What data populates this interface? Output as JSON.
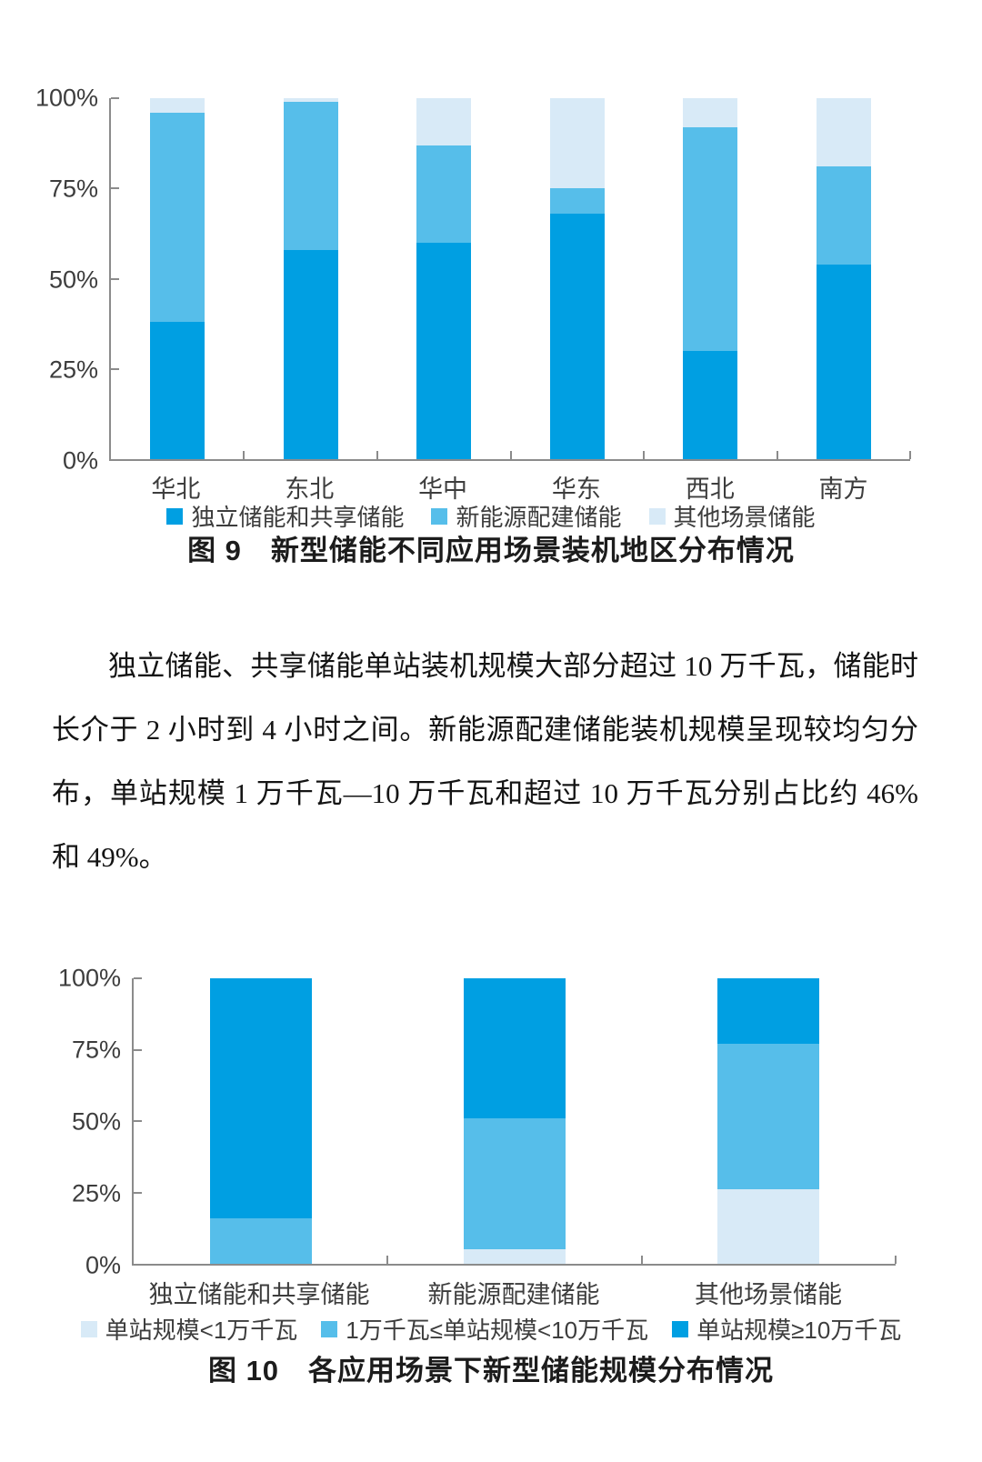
{
  "colors": {
    "dark_blue": "#009FE2",
    "medium_blue": "#56BEEA",
    "light_blue": "#D8EAF7",
    "axis": "#8B8B8B",
    "label_gray": "#3D3D3D"
  },
  "chart_data": [
    {
      "id": "figure-9",
      "type": "bar",
      "stacked": true,
      "unit": "%",
      "ylim": [
        0,
        100
      ],
      "grid": false,
      "legend_position": "bottom",
      "y_tick_labels": [
        "100%",
        "75%",
        "50%",
        "25%",
        "0%"
      ],
      "categories": [
        "华北",
        "东北",
        "华中",
        "华东",
        "西北",
        "南方"
      ],
      "series": [
        {
          "name": "独立储能和共享储能",
          "color_key": "dark_blue",
          "values": [
            38,
            58,
            60,
            68,
            30,
            54
          ]
        },
        {
          "name": "新能源配建储能",
          "color_key": "medium_blue",
          "values": [
            58,
            41,
            27,
            7,
            62,
            27
          ]
        },
        {
          "name": "其他场景储能",
          "color_key": "light_blue",
          "values": [
            4,
            1,
            13,
            25,
            8,
            19
          ]
        }
      ],
      "caption": "图 9　新型储能不同应用场景装机地区分布情况"
    },
    {
      "id": "figure-10",
      "type": "bar",
      "stacked": true,
      "unit": "%",
      "ylim": [
        0,
        100
      ],
      "grid": false,
      "legend_position": "bottom",
      "y_tick_labels": [
        "100%",
        "75%",
        "50%",
        "25%",
        "0%"
      ],
      "categories": [
        "独立储能和共享储能",
        "新能源配建储能",
        "其他场景储能"
      ],
      "series": [
        {
          "name": "单站规模<1万千瓦",
          "color_key": "light_blue",
          "values": [
            0,
            5,
            26
          ]
        },
        {
          "name": "1万千瓦≤单站规模<10万千瓦",
          "color_key": "medium_blue",
          "values": [
            16,
            46,
            51
          ]
        },
        {
          "name": "单站规模≥10万千瓦",
          "color_key": "dark_blue",
          "values": [
            84,
            49,
            23
          ]
        }
      ],
      "caption": "图 10　各应用场景下新型储能规模分布情况"
    }
  ],
  "paragraph": {
    "text": "独立储能、共享储能单站装机规模大部分超过 10 万千瓦，储能时长介于 2 小时到 4 小时之间。新能源配建储能装机规模呈现较均匀分布，单站规模 1 万千瓦—10 万千瓦和超过 10 万千瓦分别占比约 46% 和 49%。"
  }
}
